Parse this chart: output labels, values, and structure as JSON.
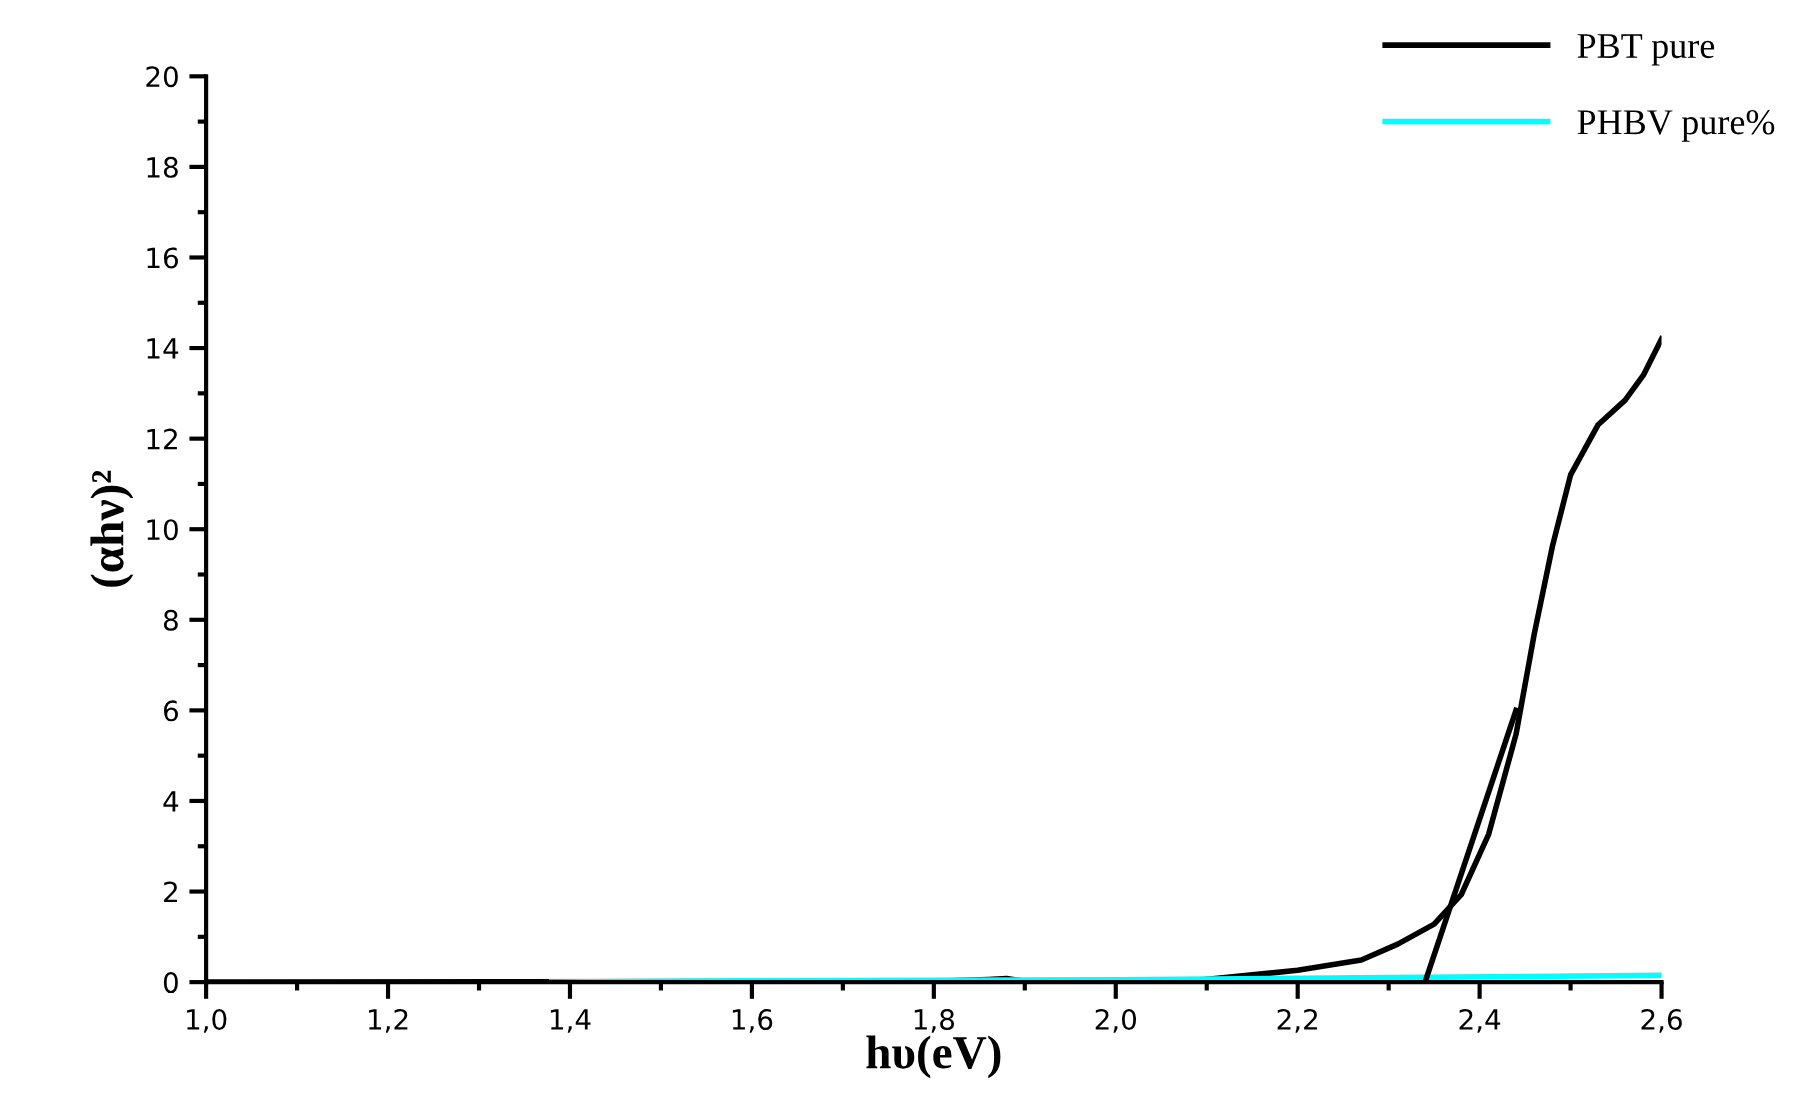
{
  "chart_data": {
    "type": "line",
    "xlabel": "hυ(eV)",
    "ylabel": "(αhν)²",
    "xlim": [
      1.0,
      2.6
    ],
    "ylim": [
      0,
      20
    ],
    "xticks": [
      {
        "value": 1.0,
        "label": "1,0"
      },
      {
        "value": 1.2,
        "label": "1,2"
      },
      {
        "value": 1.4,
        "label": "1,4"
      },
      {
        "value": 1.6,
        "label": "1,6"
      },
      {
        "value": 1.8,
        "label": "1,8"
      },
      {
        "value": 2.0,
        "label": "2,0"
      },
      {
        "value": 2.2,
        "label": "2,2"
      },
      {
        "value": 2.4,
        "label": "2,4"
      },
      {
        "value": 2.6,
        "label": "2,6"
      }
    ],
    "yticks": [
      0,
      2,
      4,
      6,
      8,
      10,
      12,
      14,
      16,
      18,
      20
    ],
    "legend": "top right",
    "grid": false,
    "marker": "none",
    "line_style": "solid",
    "series": [
      {
        "name": "PBT pure",
        "color": "#000000",
        "x": [
          1.0,
          1.8,
          1.86,
          1.88,
          1.9,
          2.0,
          2.09,
          2.2,
          2.27,
          2.31,
          2.35,
          2.38,
          2.41,
          2.44,
          2.46,
          2.48,
          2.5,
          2.53,
          2.56,
          2.58,
          2.6
        ],
        "values": [
          0,
          0.02,
          0.06,
          0.08,
          0.02,
          0.03,
          0.04,
          0.26,
          0.49,
          0.84,
          1.28,
          1.94,
          3.27,
          5.47,
          7.68,
          9.62,
          11.2,
          12.3,
          12.85,
          13.4,
          14.2
        ]
      },
      {
        "name": "PHBV pure%",
        "color": "#00ffff",
        "x": [
          1.38,
          1.6,
          2.0,
          2.3,
          2.6
        ],
        "values": [
          0,
          0.03,
          0.05,
          0.1,
          0.15
        ]
      },
      {
        "color": "#000000",
        "x": [
          2.34,
          2.44
        ],
        "values": [
          0,
          6
        ]
      }
    ]
  }
}
